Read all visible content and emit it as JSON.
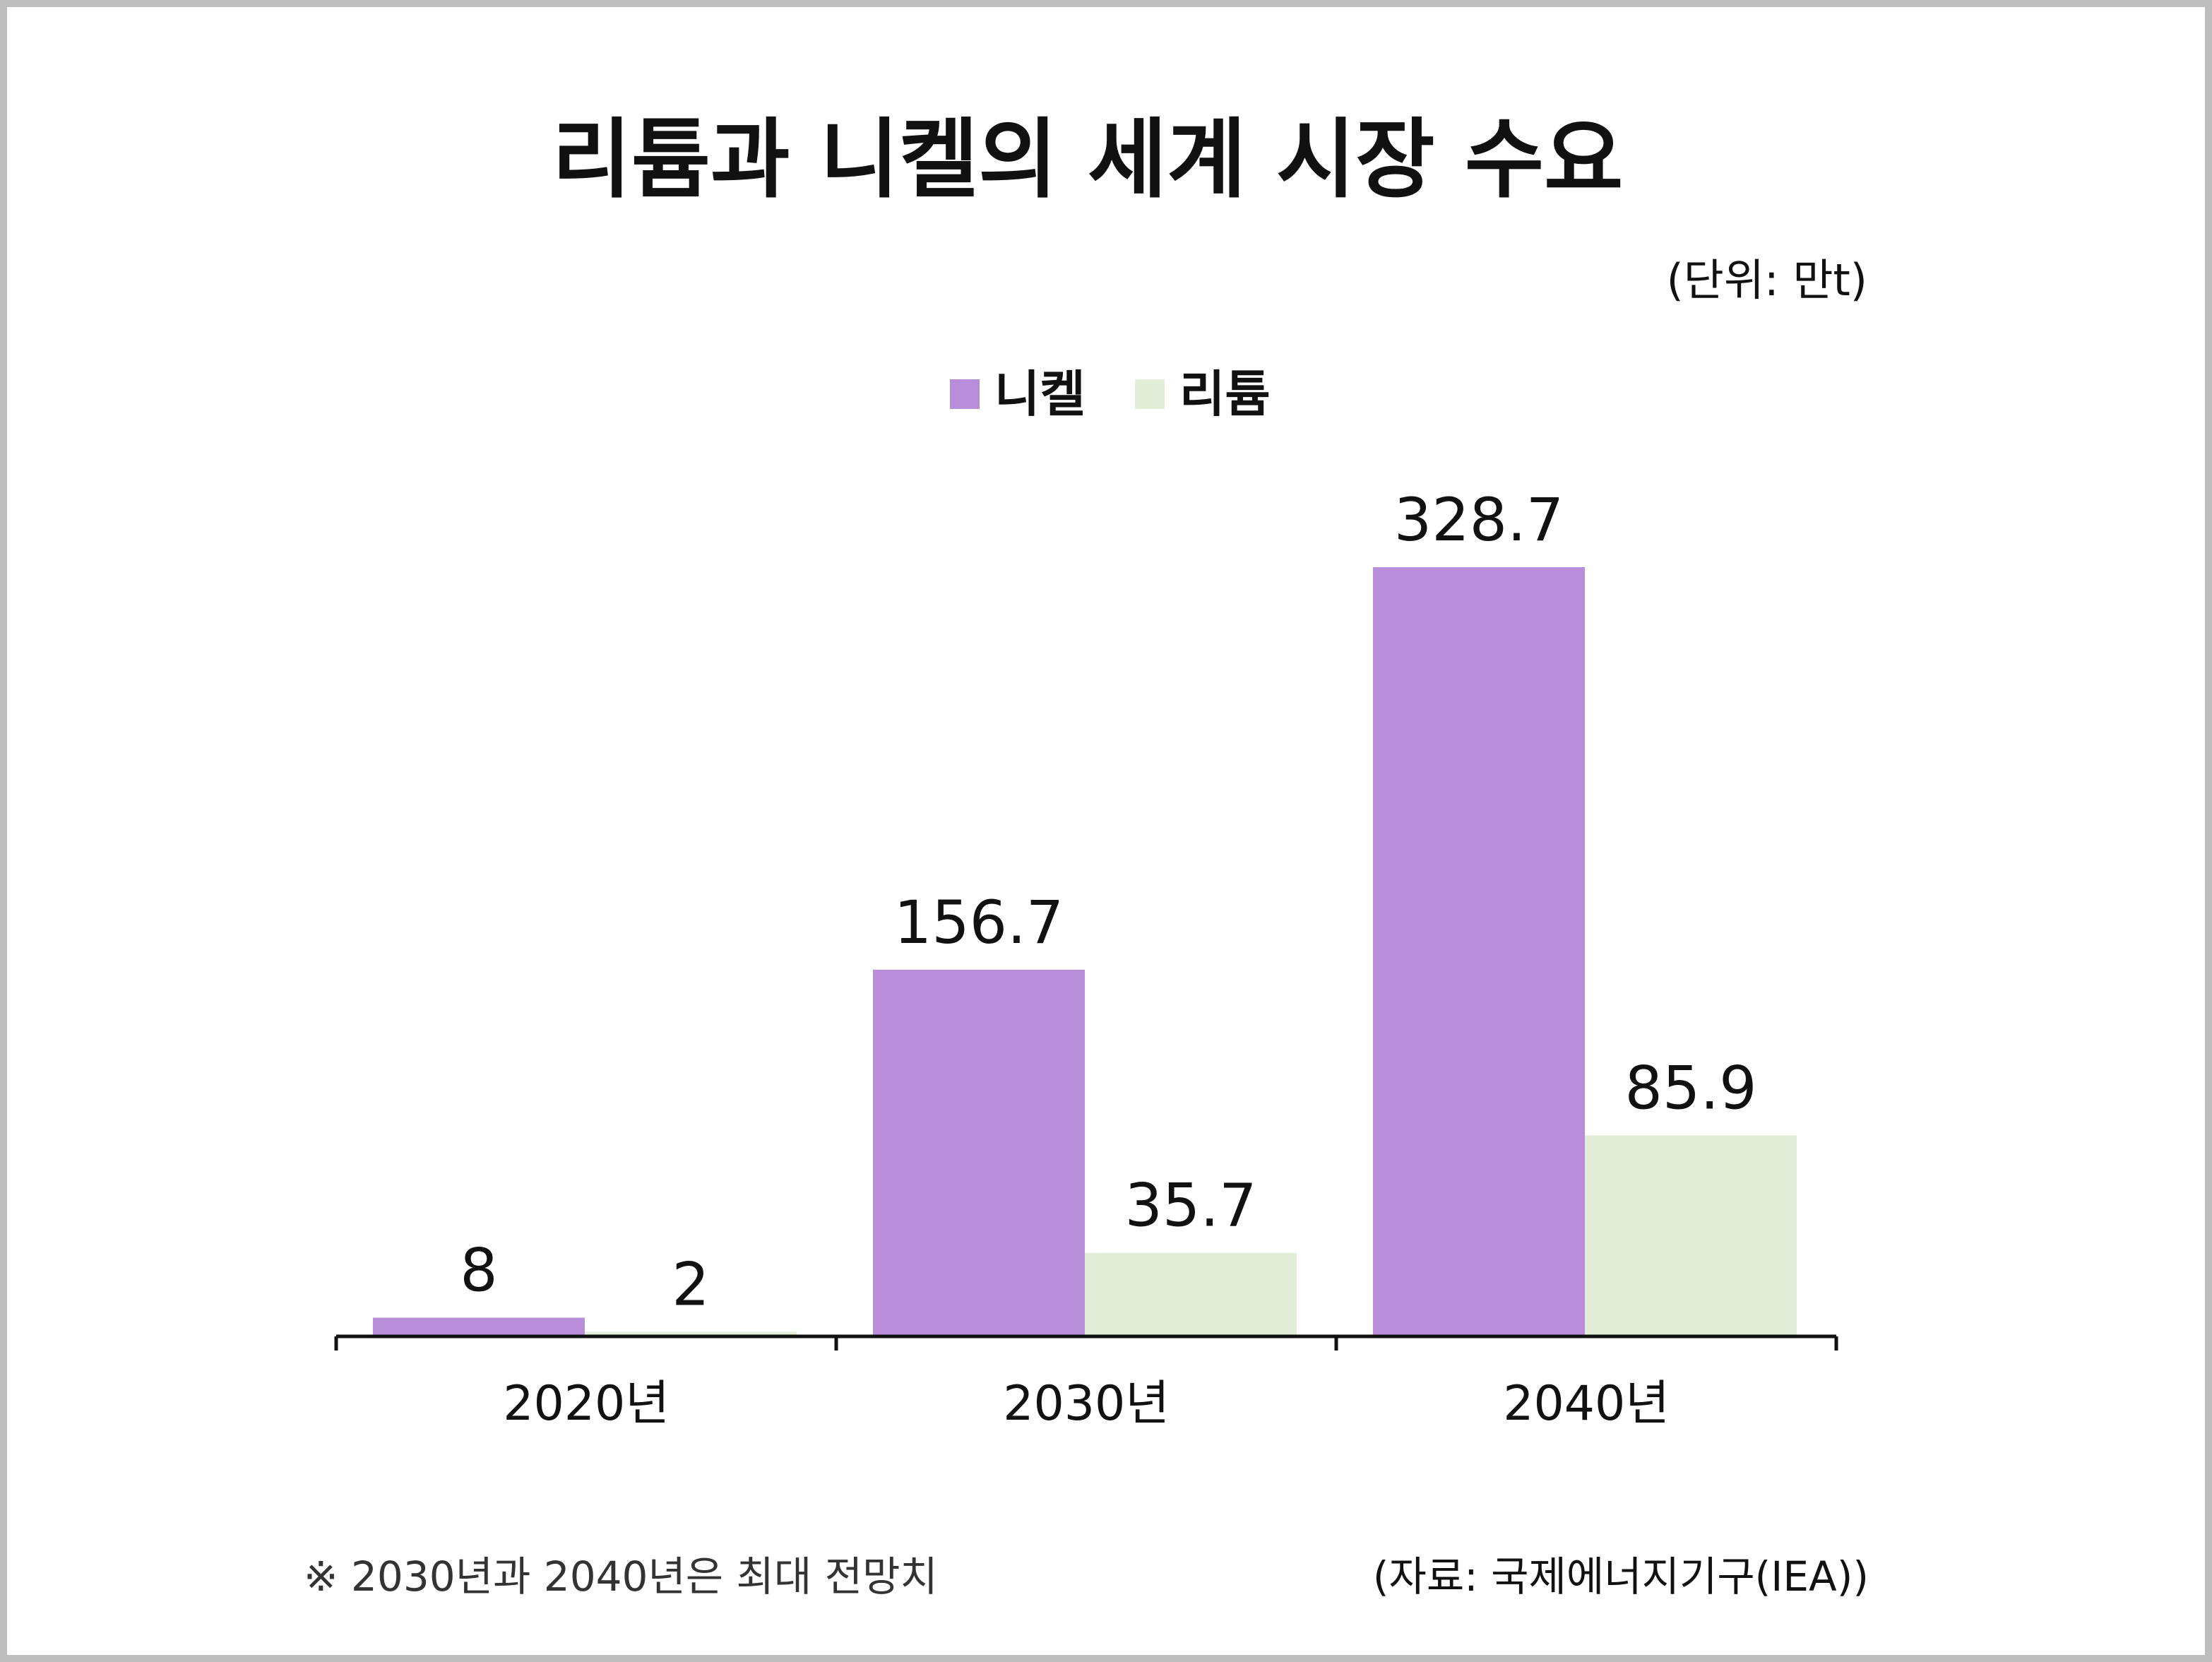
{
  "chart_data": {
    "type": "bar",
    "title": "리튬과 니켈의 세계 시장 수요",
    "unit_label": "(단위: 만t)",
    "categories": [
      "2020년",
      "2030년",
      "2040년"
    ],
    "series": [
      {
        "name": "니켈",
        "color": "#b88edb",
        "values": [
          8,
          156.7,
          328.7
        ]
      },
      {
        "name": "리튬",
        "color": "#e3eed9",
        "values": [
          2,
          35.7,
          85.9
        ]
      }
    ],
    "ylim": [
      0,
      328.7
    ],
    "grid": false,
    "legend_position": "top-center"
  },
  "footnote": "※ 2030년과 2040년은 최대 전망치",
  "source": "(자료: 국제에너지기구(IEA))",
  "colors": {
    "frame": "#bdbdbd",
    "axis": "#111111",
    "text": "#111111"
  }
}
